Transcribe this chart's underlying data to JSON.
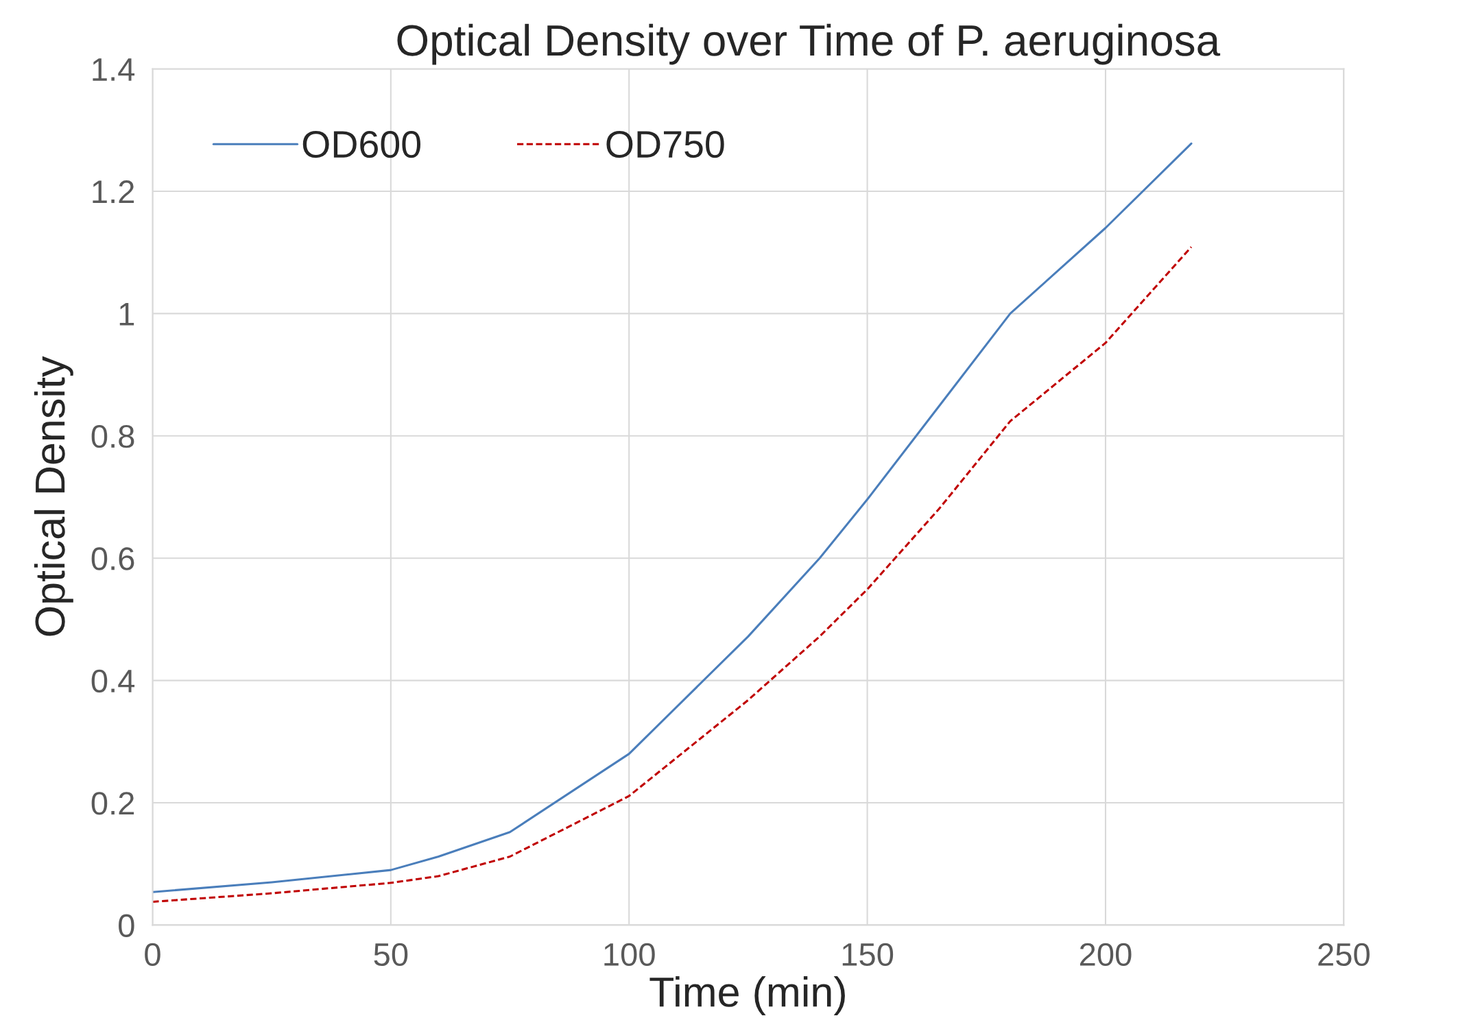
{
  "chart_data": {
    "type": "line",
    "title": "Optical Density over Time of P. aeruginosa",
    "xlabel": "Time (min)",
    "ylabel": "Optical Density",
    "x": [
      0,
      25,
      50,
      60,
      75,
      100,
      125,
      140,
      150,
      165,
      180,
      200,
      218
    ],
    "series": [
      {
        "name": "OD600",
        "color": "#4a7ebb",
        "line_style": "solid",
        "values": [
          0.054,
          0.07,
          0.09,
          0.112,
          0.152,
          0.28,
          0.472,
          0.6,
          0.696,
          0.848,
          1.0,
          1.14,
          1.278
        ]
      },
      {
        "name": "OD750",
        "color": "#c00000",
        "line_style": "dashed",
        "values": [
          0.038,
          0.052,
          0.069,
          0.08,
          0.112,
          0.211,
          0.368,
          0.472,
          0.549,
          0.68,
          0.824,
          0.952,
          1.109
        ]
      }
    ],
    "xlim": [
      0,
      250
    ],
    "xticks": [
      0,
      50,
      100,
      150,
      200,
      250
    ],
    "ylim": [
      0,
      1.4
    ],
    "yticks": [
      0,
      0.2,
      0.4,
      0.6,
      0.8,
      1,
      1.2,
      1.4
    ],
    "grid": true,
    "legend": "top left",
    "marker": "none"
  }
}
